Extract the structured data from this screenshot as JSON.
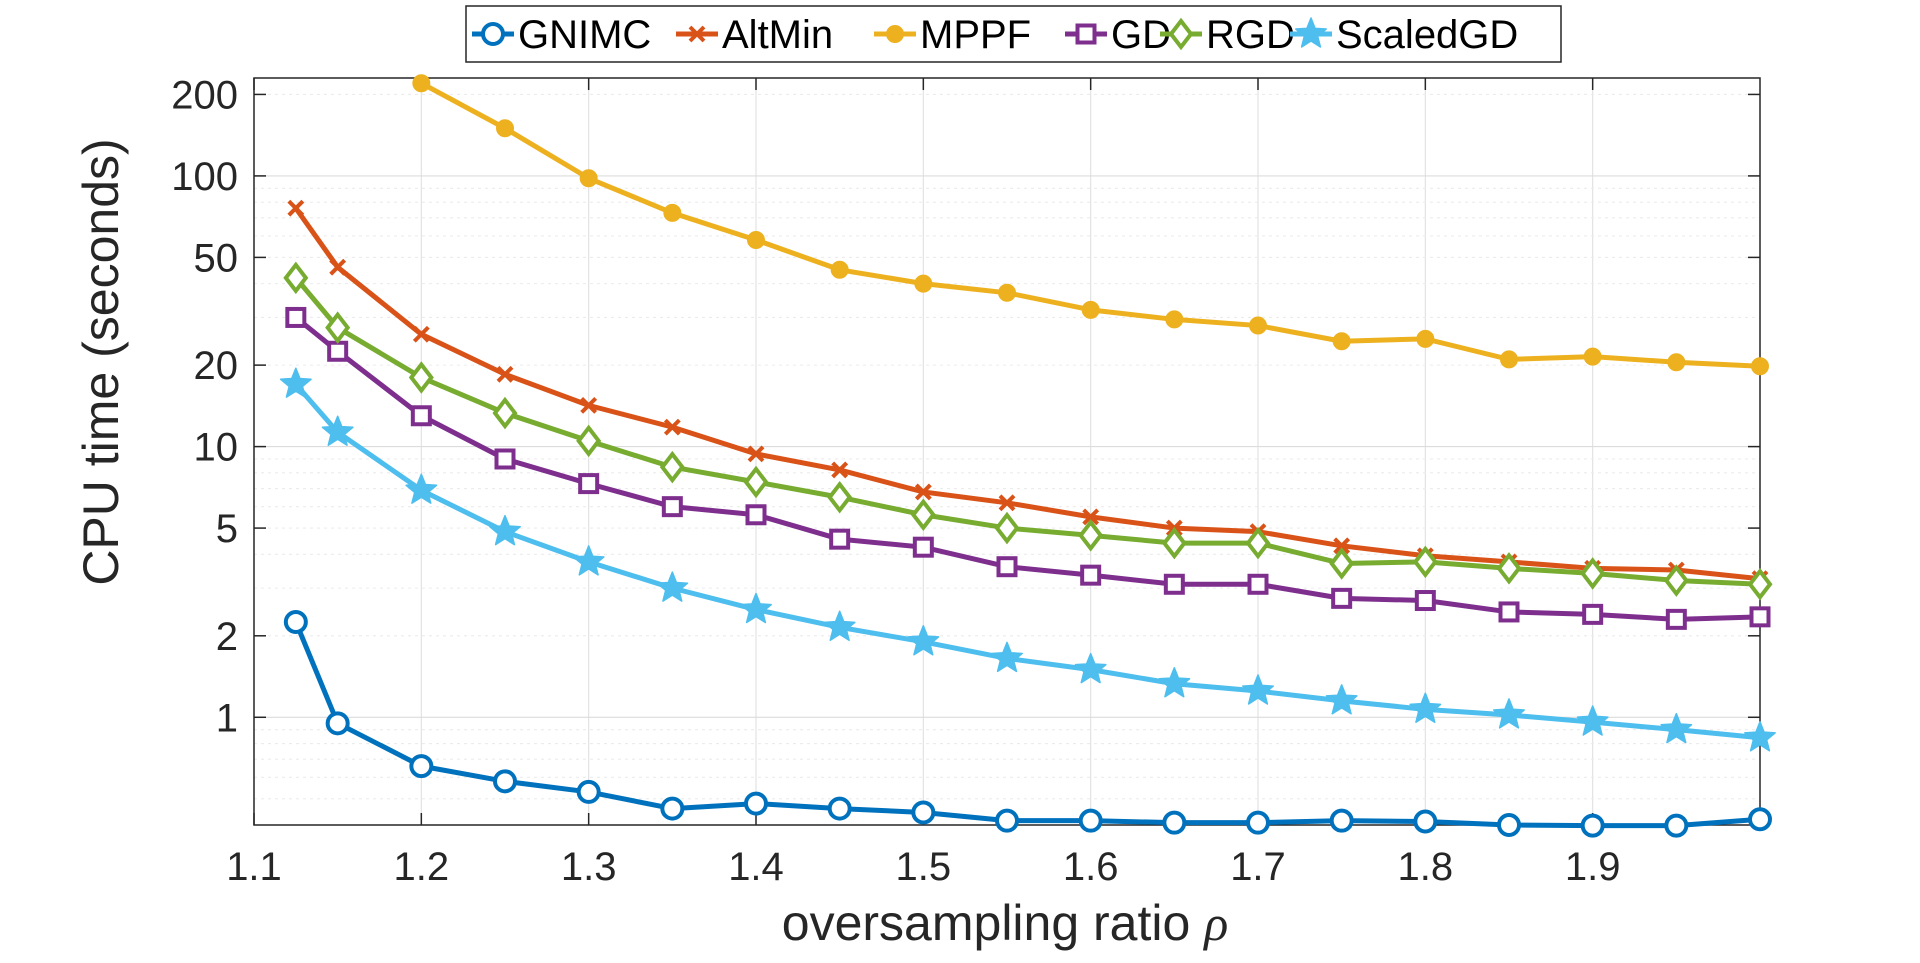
{
  "chart_data": {
    "type": "line",
    "xlabel": "oversampling ratio",
    "xlabel_symbol": "ρ",
    "ylabel": "CPU time (seconds)",
    "yscale": "log",
    "xlim": [
      1.1,
      2.0
    ],
    "ylim": [
      0.4,
      230
    ],
    "grid": true,
    "legend_position": "top-center",
    "x_ticks": [
      1.1,
      1.2,
      1.3,
      1.4,
      1.5,
      1.6,
      1.7,
      1.8,
      1.9
    ],
    "x_tick_labels": [
      "1.1",
      "1.2",
      "1.3",
      "1.4",
      "1.5",
      "1.6",
      "1.7",
      "1.8",
      "1.9"
    ],
    "y_ticks": [
      1,
      2,
      5,
      10,
      20,
      50,
      100,
      200
    ],
    "y_tick_labels": [
      "1",
      "2",
      "5",
      "10",
      "20",
      "50",
      "100",
      "200"
    ],
    "x": [
      1.125,
      1.15,
      1.2,
      1.25,
      1.3,
      1.35,
      1.4,
      1.45,
      1.5,
      1.55,
      1.6,
      1.65,
      1.7,
      1.75,
      1.8,
      1.85,
      1.9,
      1.95,
      2.0
    ],
    "series": [
      {
        "name": "GNIMC",
        "color": "#0072BD",
        "marker": "circle",
        "values": [
          2.25,
          0.95,
          0.66,
          0.58,
          0.53,
          0.46,
          0.48,
          0.46,
          0.445,
          0.415,
          0.415,
          0.408,
          0.408,
          0.415,
          0.412,
          0.4,
          0.398,
          0.398,
          0.42
        ]
      },
      {
        "name": "AltMin",
        "color": "#D95319",
        "marker": "x",
        "values": [
          76,
          46,
          26,
          18.5,
          14.2,
          11.8,
          9.4,
          8.2,
          6.8,
          6.2,
          5.5,
          5.0,
          4.85,
          4.3,
          3.95,
          3.75,
          3.55,
          3.5,
          3.25
        ]
      },
      {
        "name": "MPPF",
        "color": "#EDB120",
        "marker": "dot",
        "values": [
          null,
          null,
          220,
          150,
          98,
          73,
          58,
          45,
          40,
          37,
          32,
          29.5,
          28,
          24.5,
          25,
          21,
          21.5,
          20.5,
          19.8
        ]
      },
      {
        "name": "GD",
        "color": "#7E2F8E",
        "marker": "square",
        "values": [
          30,
          22.5,
          13,
          9.0,
          7.3,
          6.0,
          5.6,
          4.55,
          4.25,
          3.6,
          3.35,
          3.1,
          3.1,
          2.75,
          2.7,
          2.45,
          2.4,
          2.3,
          2.35
        ]
      },
      {
        "name": "RGD",
        "color": "#77AC30",
        "marker": "diamond",
        "values": [
          42,
          27.5,
          18,
          13.3,
          10.5,
          8.4,
          7.4,
          6.5,
          5.6,
          5.0,
          4.7,
          4.4,
          4.4,
          3.7,
          3.75,
          3.55,
          3.4,
          3.2,
          3.1
        ]
      },
      {
        "name": "ScaledGD",
        "color": "#4DBEEE",
        "marker": "star",
        "values": [
          17,
          11.3,
          6.9,
          4.85,
          3.75,
          3.0,
          2.5,
          2.15,
          1.9,
          1.65,
          1.5,
          1.33,
          1.25,
          1.15,
          1.07,
          1.02,
          0.96,
          0.9,
          0.84
        ]
      }
    ]
  }
}
